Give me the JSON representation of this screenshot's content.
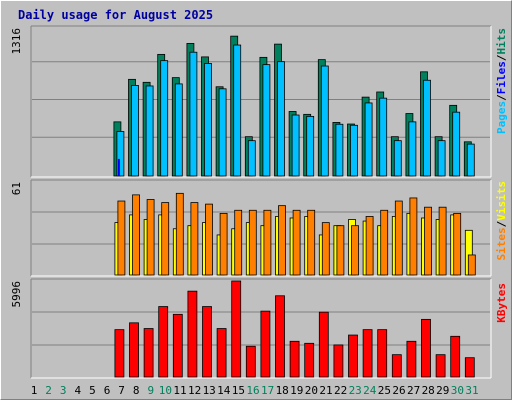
{
  "title": "Daily usage for August 2025",
  "colors": {
    "background": "#c0c0c0",
    "plot": "#c0c0c0",
    "title": "#0000a0",
    "hits": "#00805c",
    "files": "#00c0ff",
    "pages": "#00c0ff",
    "sites": "#ff8000",
    "visits": "#ffff00",
    "kbytes": "#ff0000",
    "weekday_label": "#000000",
    "weekend_label": "#00805c"
  },
  "chart_data": [
    {
      "type": "bar",
      "panel": "hits-files-pages",
      "y_axis_label": "1316",
      "side_labels": [
        "Pages",
        "/",
        "Files",
        "/",
        "Hits"
      ],
      "side_label_colors": [
        "#00c0ff",
        "#000000",
        "#0000ff",
        "#000000",
        "#00805c"
      ],
      "ylim": [
        0,
        1316
      ],
      "categories": [
        "1",
        "2",
        "3",
        "4",
        "5",
        "6",
        "7",
        "8",
        "9",
        "10",
        "11",
        "12",
        "13",
        "14",
        "15",
        "16",
        "17",
        "18",
        "19",
        "20",
        "21",
        "22",
        "23",
        "24",
        "25",
        "26",
        "27",
        "28",
        "29",
        "30",
        "31"
      ],
      "series": [
        {
          "name": "Hits",
          "values": [
            0,
            0,
            0,
            475,
            848,
            822,
            1067,
            863,
            1163,
            1045,
            783,
            1227,
            345,
            1041,
            1157,
            566,
            541,
            1021,
            470,
            456,
            692,
            737,
            345,
            548,
            914,
            345,
            620,
            300,
            0,
            0,
            0
          ]
        },
        {
          "name": "Files",
          "values": [
            0,
            0,
            0,
            390,
            794,
            790,
            1012,
            808,
            1086,
            987,
            765,
            1149,
            310,
            977,
            1003,
            535,
            523,
            965,
            454,
            445,
            641,
            683,
            310,
            475,
            840,
            310,
            560,
            280,
            0,
            0,
            0
          ]
        },
        {
          "name": "Pages",
          "values": [
            0,
            0,
            0,
            150,
            0,
            0,
            0,
            0,
            0,
            0,
            0,
            0,
            0,
            0,
            0,
            0,
            0,
            0,
            0,
            0,
            0,
            0,
            0,
            0,
            0,
            0,
            0,
            0,
            0,
            0,
            0
          ]
        }
      ]
    },
    {
      "type": "bar",
      "panel": "visits-sites",
      "y_axis_label": "61",
      "side_labels": [
        "Sites",
        "/",
        "Visits"
      ],
      "side_label_colors": [
        "#ff8000",
        "#000000",
        "#ffff00"
      ],
      "ylim": [
        0,
        61
      ],
      "categories": [
        "1",
        "2",
        "3",
        "4",
        "5",
        "6",
        "7",
        "8",
        "9",
        "10",
        "11",
        "12",
        "13",
        "14",
        "15",
        "16",
        "17",
        "18",
        "19",
        "20",
        "21",
        "22",
        "23",
        "24",
        "25",
        "26",
        "27",
        "28",
        "29",
        "30",
        "31"
      ],
      "series": [
        {
          "name": "Visits",
          "values": [
            0,
            0,
            0,
            48,
            52,
            49,
            47,
            53,
            47,
            46,
            40,
            42,
            42,
            42,
            45,
            42,
            42,
            34,
            32,
            32,
            38,
            42,
            48,
            50,
            44,
            44,
            40,
            13,
            0,
            0,
            0
          ]
        },
        {
          "name": "Sites",
          "values": [
            0,
            0,
            0,
            34,
            39,
            36,
            39,
            30,
            32,
            34,
            26,
            30,
            34,
            32,
            38,
            37,
            38,
            26,
            32,
            36,
            35,
            32,
            38,
            40,
            37,
            36,
            39,
            29,
            0,
            0,
            0
          ]
        }
      ]
    },
    {
      "type": "bar",
      "panel": "kbytes",
      "y_axis_label": "5996",
      "side_labels": [
        "KBytes"
      ],
      "side_label_colors": [
        "#ff0000"
      ],
      "ylim": [
        0,
        5996
      ],
      "categories": [
        "1",
        "2",
        "3",
        "4",
        "5",
        "6",
        "7",
        "8",
        "9",
        "10",
        "11",
        "12",
        "13",
        "14",
        "15",
        "16",
        "17",
        "18",
        "19",
        "20",
        "21",
        "22",
        "23",
        "24",
        "25",
        "26",
        "27",
        "28",
        "29",
        "30",
        "31"
      ],
      "series": [
        {
          "name": "KBytes",
          "values": [
            0,
            0,
            0,
            2958,
            3384,
            3027,
            4400,
            3915,
            5362,
            4400,
            3027,
            5996,
            1920,
            4114,
            5074,
            2231,
            2105,
            4050,
            2004,
            2620,
            2958,
            2958,
            1395,
            2231,
            3600,
            1395,
            2542,
            1206,
            0,
            0,
            0
          ]
        }
      ]
    }
  ],
  "day_labels": [
    "1",
    "2",
    "3",
    "4",
    "5",
    "6",
    "7",
    "8",
    "9",
    "10",
    "11",
    "12",
    "13",
    "14",
    "15",
    "16",
    "17",
    "18",
    "19",
    "20",
    "21",
    "22",
    "23",
    "24",
    "25",
    "26",
    "27",
    "28",
    "29",
    "30",
    "31"
  ],
  "weekend_days": [
    "2",
    "3",
    "9",
    "10",
    "16",
    "17",
    "23",
    "24",
    "30",
    "31"
  ]
}
